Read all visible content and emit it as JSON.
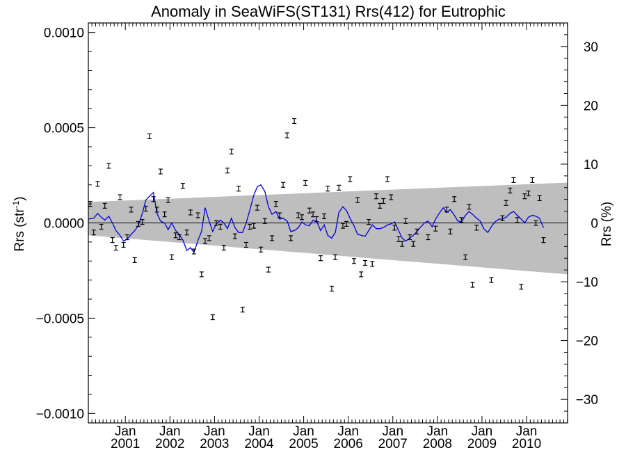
{
  "chart_data": {
    "type": "scatter",
    "title": "Anomaly in SeaWiFS(ST131) Rrs(412) for Eutrophic",
    "ylabel_left": "Rrs (str",
    "ylabel_left_sup": "-1",
    "ylabel_left_close": ")",
    "ylabel_right": "Rrs (%)",
    "xlim": [
      2000.17,
      2010.92
    ],
    "ylim_left": [
      -0.00105,
      0.00105
    ],
    "ylim_right": [
      -34,
      34
    ],
    "x_ticks": [
      {
        "top": "Jan",
        "bottom": "2001",
        "x": 2001.0
      },
      {
        "top": "Jan",
        "bottom": "2002",
        "x": 2002.0
      },
      {
        "top": "Jan",
        "bottom": "2003",
        "x": 2003.0
      },
      {
        "top": "Jan",
        "bottom": "2004",
        "x": 2004.0
      },
      {
        "top": "Jan",
        "bottom": "2005",
        "x": 2005.0
      },
      {
        "top": "Jan",
        "bottom": "2006",
        "x": 2006.0
      },
      {
        "top": "Jan",
        "bottom": "2007",
        "x": 2007.0
      },
      {
        "top": "Jan",
        "bottom": "2008",
        "x": 2008.0
      },
      {
        "top": "Jan",
        "bottom": "2009",
        "x": 2009.0
      },
      {
        "top": "Jan",
        "bottom": "2010",
        "x": 2010.0
      }
    ],
    "y_ticks_left": [
      {
        "label": "0.0010",
        "value": 0.001
      },
      {
        "label": "0.0005",
        "value": 0.0005
      },
      {
        "label": "0.0000",
        "value": 0.0
      },
      {
        "label": "−0.0005",
        "value": -0.0005
      },
      {
        "label": "−0.0010",
        "value": -0.001
      }
    ],
    "y_ticks_right": [
      {
        "label": "30",
        "value": 30
      },
      {
        "label": "20",
        "value": 20
      },
      {
        "label": "10",
        "value": 10
      },
      {
        "label": "0",
        "value": 0
      },
      {
        "label": "−10",
        "value": -10
      },
      {
        "label": "−20",
        "value": -20
      },
      {
        "label": "−30",
        "value": -30
      }
    ],
    "band": {
      "x": [
        2000.17,
        2010.92
      ],
      "upper": [
        0.00011,
        0.000212
      ],
      "lower": [
        -6.5e-05,
        -0.00027
      ]
    },
    "zero_line": 0.0,
    "points": [
      {
        "x": 2000.21,
        "y": 0.0001
      },
      {
        "x": 2000.29,
        "y": -5e-05
      },
      {
        "x": 2000.38,
        "y": 0.000205
      },
      {
        "x": 2000.46,
        "y": -2e-05
      },
      {
        "x": 2000.54,
        "y": 9e-05
      },
      {
        "x": 2000.63,
        "y": 0.0003
      },
      {
        "x": 2000.71,
        "y": -9e-05
      },
      {
        "x": 2000.79,
        "y": -0.00013
      },
      {
        "x": 2000.88,
        "y": 0.000135
      },
      {
        "x": 2000.96,
        "y": -0.000115
      },
      {
        "x": 2001.04,
        "y": -7.5e-05
      },
      {
        "x": 2001.13,
        "y": 7e-05
      },
      {
        "x": 2001.21,
        "y": -0.000195
      },
      {
        "x": 2001.29,
        "y": -5e-06
      },
      {
        "x": 2001.38,
        "y": 5e-06
      },
      {
        "x": 2001.46,
        "y": 7.5e-05
      },
      {
        "x": 2001.54,
        "y": 0.000455
      },
      {
        "x": 2001.63,
        "y": 0.000125
      },
      {
        "x": 2001.71,
        "y": 7e-05
      },
      {
        "x": 2001.79,
        "y": 0.00027
      },
      {
        "x": 2001.88,
        "y": 4.5e-05
      },
      {
        "x": 2001.96,
        "y": 0.00012
      },
      {
        "x": 2002.04,
        "y": -0.00018
      },
      {
        "x": 2002.13,
        "y": -6.5e-05
      },
      {
        "x": 2002.21,
        "y": -7.5e-05
      },
      {
        "x": 2002.29,
        "y": 0.000195
      },
      {
        "x": 2002.38,
        "y": -5e-05
      },
      {
        "x": 2002.46,
        "y": 5.5e-05
      },
      {
        "x": 2002.54,
        "y": -0.00015
      },
      {
        "x": 2002.63,
        "y": 4e-05
      },
      {
        "x": 2002.71,
        "y": -0.00027
      },
      {
        "x": 2002.79,
        "y": -9.5e-05
      },
      {
        "x": 2002.88,
        "y": -8e-05
      },
      {
        "x": 2002.96,
        "y": -0.000495
      },
      {
        "x": 2003.04,
        "y": 0.0
      },
      {
        "x": 2003.13,
        "y": -2e-05
      },
      {
        "x": 2003.21,
        "y": -0.00013
      },
      {
        "x": 2003.29,
        "y": 0.000275
      },
      {
        "x": 2003.38,
        "y": 0.000375
      },
      {
        "x": 2003.46,
        "y": -7e-05
      },
      {
        "x": 2003.54,
        "y": 0.00018
      },
      {
        "x": 2003.63,
        "y": -0.000455
      },
      {
        "x": 2003.71,
        "y": -0.000115
      },
      {
        "x": 2003.79,
        "y": -2e-05
      },
      {
        "x": 2003.88,
        "y": -1.5e-05
      },
      {
        "x": 2003.96,
        "y": 8e-05
      },
      {
        "x": 2004.04,
        "y": -0.00014
      },
      {
        "x": 2004.13,
        "y": 1e-05
      },
      {
        "x": 2004.21,
        "y": -0.000245
      },
      {
        "x": 2004.29,
        "y": -8e-05
      },
      {
        "x": 2004.38,
        "y": 0.0001
      },
      {
        "x": 2004.46,
        "y": 4e-05
      },
      {
        "x": 2004.54,
        "y": 0.0002
      },
      {
        "x": 2004.63,
        "y": 0.00046
      },
      {
        "x": 2004.71,
        "y": -8e-05
      },
      {
        "x": 2004.79,
        "y": 0.000535
      },
      {
        "x": 2004.88,
        "y": 4e-05
      },
      {
        "x": 2004.96,
        "y": 3e-05
      },
      {
        "x": 2005.04,
        "y": 0.00021
      },
      {
        "x": 2005.13,
        "y": 6.5e-05
      },
      {
        "x": 2005.21,
        "y": 4.5e-05
      },
      {
        "x": 2005.29,
        "y": 2e-05
      },
      {
        "x": 2005.38,
        "y": -0.000185
      },
      {
        "x": 2005.46,
        "y": 3.5e-05
      },
      {
        "x": 2005.54,
        "y": 0.00018
      },
      {
        "x": 2005.63,
        "y": -0.000345
      },
      {
        "x": 2005.71,
        "y": -0.00018
      },
      {
        "x": 2005.79,
        "y": 0.000185
      },
      {
        "x": 2005.88,
        "y": -1.5e-05
      },
      {
        "x": 2005.96,
        "y": -5e-06
      },
      {
        "x": 2006.04,
        "y": 0.00023
      },
      {
        "x": 2006.13,
        "y": -0.0002
      },
      {
        "x": 2006.21,
        "y": 0.00012
      },
      {
        "x": 2006.29,
        "y": -0.00027
      },
      {
        "x": 2006.38,
        "y": -0.00021
      },
      {
        "x": 2006.46,
        "y": 5e-06
      },
      {
        "x": 2006.54,
        "y": -0.000215
      },
      {
        "x": 2006.63,
        "y": 0.00014
      },
      {
        "x": 2006.71,
        "y": 9e-05
      },
      {
        "x": 2006.79,
        "y": 0.000115
      },
      {
        "x": 2006.88,
        "y": 0.00023
      },
      {
        "x": 2006.96,
        "y": 0.000135
      },
      {
        "x": 2007.04,
        "y": -2.5e-05
      },
      {
        "x": 2007.13,
        "y": -8.5e-05
      },
      {
        "x": 2007.21,
        "y": -0.00011
      },
      {
        "x": 2007.29,
        "y": 1e-05
      },
      {
        "x": 2007.38,
        "y": -7.5e-05
      },
      {
        "x": 2007.46,
        "y": -0.00011
      },
      {
        "x": 2007.54,
        "y": -4.5e-05
      },
      {
        "x": 2007.79,
        "y": -7.5e-05
      },
      {
        "x": 2007.96,
        "y": -3e-05
      },
      {
        "x": 2008.21,
        "y": 7e-05
      },
      {
        "x": 2008.29,
        "y": -4.5e-05
      },
      {
        "x": 2008.38,
        "y": 0.000125
      },
      {
        "x": 2008.54,
        "y": 1.5e-05
      },
      {
        "x": 2008.63,
        "y": -0.00018
      },
      {
        "x": 2008.71,
        "y": 8.5e-05
      },
      {
        "x": 2008.79,
        "y": -0.000325
      },
      {
        "x": 2008.88,
        "y": -2.5e-05
      },
      {
        "x": 2009.21,
        "y": -0.0003
      },
      {
        "x": 2009.46,
        "y": 2.5e-05
      },
      {
        "x": 2009.54,
        "y": 0.000105
      },
      {
        "x": 2009.63,
        "y": 0.00017
      },
      {
        "x": 2009.71,
        "y": 0.000225
      },
      {
        "x": 2009.79,
        "y": 1.5e-05
      },
      {
        "x": 2009.88,
        "y": -0.000335
      },
      {
        "x": 2009.96,
        "y": 0.00014
      },
      {
        "x": 2010.04,
        "y": 0.000155
      },
      {
        "x": 2010.13,
        "y": 0.000225
      },
      {
        "x": 2010.21,
        "y": 0.0
      },
      {
        "x": 2010.29,
        "y": 0.00013
      },
      {
        "x": 2010.38,
        "y": -9e-05
      }
    ],
    "smooth_line": {
      "color": "#0000dd",
      "x": [
        2000.17,
        2000.29,
        2000.38,
        2000.46,
        2000.54,
        2000.63,
        2000.71,
        2000.79,
        2000.88,
        2000.96,
        2001.04,
        2001.13,
        2001.21,
        2001.29,
        2001.38,
        2001.46,
        2001.54,
        2001.63,
        2001.71,
        2001.79,
        2001.88,
        2001.96,
        2002.04,
        2002.13,
        2002.21,
        2002.29,
        2002.38,
        2002.46,
        2002.54,
        2002.63,
        2002.71,
        2002.79,
        2002.88,
        2002.96,
        2003.04,
        2003.13,
        2003.21,
        2003.29,
        2003.38,
        2003.46,
        2003.54,
        2003.63,
        2003.71,
        2003.79,
        2003.88,
        2003.96,
        2004.04,
        2004.13,
        2004.21,
        2004.29,
        2004.38,
        2004.46,
        2004.54,
        2004.63,
        2004.71,
        2004.79,
        2004.88,
        2004.96,
        2005.04,
        2005.13,
        2005.21,
        2005.29,
        2005.38,
        2005.46,
        2005.54,
        2005.63,
        2005.71,
        2005.79,
        2005.88,
        2005.96,
        2006.04,
        2006.13,
        2006.21,
        2006.29,
        2006.38,
        2006.46,
        2006.54,
        2006.63,
        2006.71,
        2006.79,
        2006.88,
        2006.96,
        2007.04,
        2007.13,
        2007.21,
        2007.29,
        2007.38,
        2007.46,
        2007.54,
        2007.63,
        2007.71,
        2007.79,
        2007.88,
        2007.96,
        2008.04,
        2008.13,
        2008.21,
        2008.29,
        2008.38,
        2008.46,
        2008.54,
        2008.63,
        2008.71,
        2008.79,
        2008.88,
        2008.96,
        2009.04,
        2009.13,
        2009.21,
        2009.29,
        2009.38,
        2009.46,
        2009.54,
        2009.63,
        2009.71,
        2009.79,
        2009.88,
        2009.96,
        2010.04,
        2010.13,
        2010.21,
        2010.29,
        2010.38
      ],
      "y": [
        2e-05,
        2.5e-05,
        5e-05,
        3e-05,
        1.5e-05,
        3.5e-05,
        0.0,
        -4e-05,
        -6.5e-05,
        -9.5e-05,
        -8.5e-05,
        -6e-05,
        -4e-05,
        -1.5e-05,
        5e-05,
        0.00012,
        0.00014,
        0.00016,
        5e-05,
        1e-05,
        0.0,
        -3.5e-05,
        0.0,
        -4e-05,
        -6e-05,
        -9e-05,
        -0.000145,
        -0.00013,
        -0.000155,
        -9e-05,
        -4.5e-05,
        8e-05,
        1e-05,
        -4.5e-05,
        -5e-06,
        1.5e-05,
        0.0,
        -3e-05,
        2.5e-05,
        -2.5e-05,
        -5e-05,
        -5e-05,
        0.0,
        6.5e-05,
        0.000145,
        0.00019,
        0.0002,
        0.000165,
        8.5e-05,
        4.5e-05,
        6e-05,
        2e-05,
        2.5e-05,
        1e-05,
        -4.5e-05,
        -4e-05,
        -2.5e-05,
        5e-06,
        -1e-05,
        -1.5e-05,
        1.5e-05,
        1e-05,
        -4e-05,
        -1e-05,
        -6.5e-05,
        -8e-05,
        -5e-05,
        5.5e-05,
        8.5e-05,
        6.5e-05,
        2.5e-05,
        -1.5e-05,
        -6e-05,
        -6.5e-05,
        -7e-05,
        -4e-05,
        -1e-05,
        -3e-05,
        -3e-05,
        -2.5e-05,
        -1e-05,
        -5e-06,
        5e-06,
        -4e-05,
        -8e-05,
        -9.5e-05,
        -8e-05,
        -6.5e-05,
        -4.5e-05,
        -2e-05,
        0.0,
        1e-05,
        -2e-05,
        2e-05,
        5e-05,
        8e-05,
        5.5e-05,
        7e-05,
        4e-05,
        1e-05,
        5e-06,
        4e-05,
        6e-05,
        4.5e-05,
        2.5e-05,
        1e-05,
        -3e-05,
        -5e-05,
        -2e-05,
        5e-06,
        2e-05,
        2e-05,
        3e-05,
        5e-05,
        6e-05,
        4e-05,
        2e-05,
        0.0,
        3e-05,
        4e-05,
        3.5e-05,
        2.5e-05,
        -2.5e-05
      ]
    }
  }
}
